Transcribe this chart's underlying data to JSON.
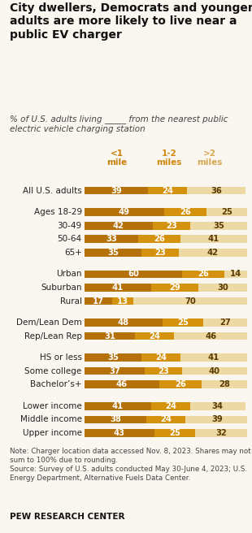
{
  "title": "City dwellers, Democrats and younger\nadults are more likely to live near a\npublic EV charger",
  "subtitle_plain": "% of U.S. adults living ",
  "subtitle_line": "_____",
  "subtitle_rest": " from the nearest public\nelectric vehicle charging station",
  "legend_labels": [
    "<1\nmile",
    "1-2\nmiles",
    ">2\nmiles"
  ],
  "legend_label_colors": [
    "#c8820a",
    "#d4880e",
    "#d4a855"
  ],
  "categories": [
    "All U.S. adults",
    "Ages 18-29",
    "30-49",
    "50-64",
    "65+",
    "Urban",
    "Suburban",
    "Rural",
    "Dem/Lean Dem",
    "Rep/Lean Rep",
    "HS or less",
    "Some college",
    "Bachelor’s+",
    "Lower income",
    "Middle income",
    "Upper income"
  ],
  "data": [
    [
      39,
      24,
      36
    ],
    [
      49,
      26,
      25
    ],
    [
      42,
      23,
      35
    ],
    [
      33,
      26,
      41
    ],
    [
      35,
      23,
      42
    ],
    [
      60,
      26,
      14
    ],
    [
      41,
      29,
      30
    ],
    [
      17,
      13,
      70
    ],
    [
      48,
      25,
      27
    ],
    [
      31,
      24,
      46
    ],
    [
      35,
      24,
      41
    ],
    [
      37,
      23,
      40
    ],
    [
      46,
      26,
      28
    ],
    [
      41,
      24,
      34
    ],
    [
      38,
      24,
      39
    ],
    [
      43,
      25,
      32
    ]
  ],
  "colors": [
    "#b5720a",
    "#d4920e",
    "#edd9a3"
  ],
  "group_gap_after": [
    0,
    4,
    7,
    9,
    12
  ],
  "note": "Note: Charger location data accessed Nov. 8, 2023. Shares may not\nsum to 100% due to rounding.\nSource: Survey of U.S. adults conducted May 30-June 4, 2023; U.S.\nEnergy Department, Alternative Fuels Data Center.",
  "footer": "PEW RESEARCH CENTER",
  "background_color": "#faf6f0"
}
